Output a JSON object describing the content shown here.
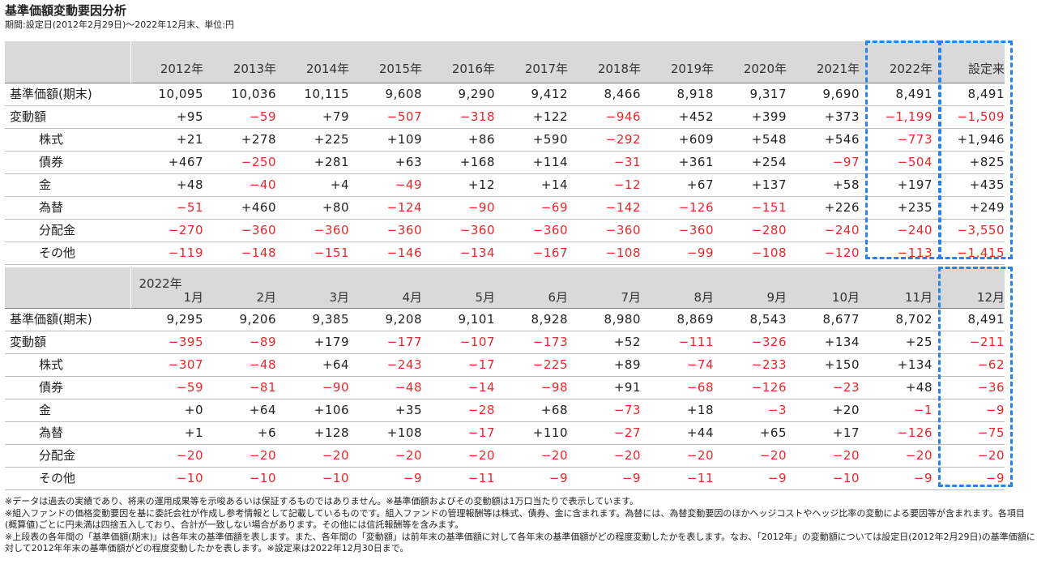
{
  "title": "基準価額変動要因分析",
  "subtitle": "期間:設定日(2012年2月29日)～2022年12月末、単位:円",
  "annual": {
    "columns": [
      "2012年",
      "2013年",
      "2014年",
      "2015年",
      "2016年",
      "2017年",
      "2018年",
      "2019年",
      "2020年",
      "2021年",
      "2022年",
      "設定来"
    ],
    "rows": [
      {
        "label": "基準価額(期末)",
        "indent": 0,
        "values": [
          "10,095",
          "10,036",
          "10,115",
          "9,608",
          "9,290",
          "9,412",
          "8,466",
          "8,918",
          "9,317",
          "9,690",
          "8,491",
          "8,491"
        ]
      },
      {
        "label": "変動額",
        "indent": 0,
        "values": [
          "+95",
          "-59",
          "+79",
          "-507",
          "-318",
          "+122",
          "-946",
          "+452",
          "+399",
          "+373",
          "-1,199",
          "-1,509"
        ]
      },
      {
        "label": "株式",
        "indent": 1,
        "values": [
          "+21",
          "+278",
          "+225",
          "+109",
          "+86",
          "+590",
          "-292",
          "+609",
          "+548",
          "+546",
          "-773",
          "+1,946"
        ]
      },
      {
        "label": "債券",
        "indent": 1,
        "values": [
          "+467",
          "-250",
          "+281",
          "+63",
          "+168",
          "+114",
          "-31",
          "+361",
          "+254",
          "-97",
          "-504",
          "+825"
        ]
      },
      {
        "label": "金",
        "indent": 1,
        "values": [
          "+48",
          "-40",
          "+4",
          "-49",
          "+12",
          "+14",
          "-12",
          "+67",
          "+137",
          "+58",
          "+197",
          "+435"
        ]
      },
      {
        "label": "為替",
        "indent": 1,
        "values": [
          "-51",
          "+460",
          "+80",
          "-124",
          "-90",
          "-69",
          "-142",
          "-126",
          "-151",
          "+226",
          "+235",
          "+249"
        ]
      },
      {
        "label": "分配金",
        "indent": 1,
        "values": [
          "-270",
          "-360",
          "-360",
          "-360",
          "-360",
          "-360",
          "-360",
          "-360",
          "-280",
          "-240",
          "-240",
          "-3,550"
        ]
      },
      {
        "label": "その他",
        "indent": 1,
        "values": [
          "-119",
          "-148",
          "-151",
          "-146",
          "-134",
          "-167",
          "-108",
          "-99",
          "-108",
          "-120",
          "-113",
          "-1,415"
        ]
      }
    ]
  },
  "monthly": {
    "year_label": "2022年",
    "columns": [
      "1月",
      "2月",
      "3月",
      "4月",
      "5月",
      "6月",
      "7月",
      "8月",
      "9月",
      "10月",
      "11月",
      "12月"
    ],
    "rows": [
      {
        "label": "基準価額(期末)",
        "indent": 0,
        "values": [
          "9,295",
          "9,206",
          "9,385",
          "9,208",
          "9,101",
          "8,928",
          "8,980",
          "8,869",
          "8,543",
          "8,677",
          "8,702",
          "8,491"
        ]
      },
      {
        "label": "変動額",
        "indent": 0,
        "values": [
          "-395",
          "-89",
          "+179",
          "-177",
          "-107",
          "-173",
          "+52",
          "-111",
          "-326",
          "+134",
          "+25",
          "-211"
        ]
      },
      {
        "label": "株式",
        "indent": 1,
        "values": [
          "-307",
          "-48",
          "+64",
          "-243",
          "-17",
          "-225",
          "+89",
          "-74",
          "-233",
          "+150",
          "+134",
          "-62"
        ]
      },
      {
        "label": "債券",
        "indent": 1,
        "values": [
          "-59",
          "-81",
          "-90",
          "-48",
          "-14",
          "-98",
          "+91",
          "-68",
          "-126",
          "-23",
          "+48",
          "-36"
        ]
      },
      {
        "label": "金",
        "indent": 1,
        "values": [
          "+0",
          "+64",
          "+106",
          "+35",
          "-28",
          "+68",
          "-73",
          "+18",
          "-3",
          "+20",
          "-1",
          "-9"
        ]
      },
      {
        "label": "為替",
        "indent": 1,
        "values": [
          "+1",
          "+6",
          "+128",
          "+108",
          "-17",
          "+110",
          "-27",
          "+44",
          "+65",
          "+17",
          "-126",
          "-75"
        ]
      },
      {
        "label": "分配金",
        "indent": 1,
        "values": [
          "-20",
          "-20",
          "-20",
          "-20",
          "-20",
          "-20",
          "-20",
          "-20",
          "-20",
          "-20",
          "-20",
          "-20"
        ]
      },
      {
        "label": "その他",
        "indent": 1,
        "values": [
          "-10",
          "-10",
          "-10",
          "-9",
          "-11",
          "-9",
          "-9",
          "-11",
          "-9",
          "-10",
          "-9",
          "-9"
        ]
      }
    ]
  },
  "notes": [
    "※データは過去の実績であり、将来の運用成果等を示唆あるいは保証するものではありません。※基準価額およびその変動額は1万口当たりで表示しています。",
    "※組入ファンドの価格変動要因を基に委託会社が作成し参考情報として記載しているものです。組入ファンドの管理報酬等は株式、債券、金に含まれます。為替には、為替変動要因のほかヘッジコストやヘッジ比率の変動による要因等が含まれます。各項目(概算値)ごとに円未満は四捨五入しており、合計が一致しない場合があります。その他には信託報酬等を含みます。",
    "※上段表の各年間の「基準価額(期末)」は各年末の基準価額を表します。また、各年間の「変動額」は前年末の基準価額に対して各年末の基準価額がどの程度変動したかを表します。なお、「2012年」の変動額については設定日(2012年2月29日)の基準価額に対して2012年年末の基準価額がどの程度変動したかを表します。※設定来は2022年12月30日まで。"
  ],
  "colors": {
    "negative": "#e8282b",
    "header_bg": "#d9d9d9",
    "highlight": "#2a83e6"
  }
}
